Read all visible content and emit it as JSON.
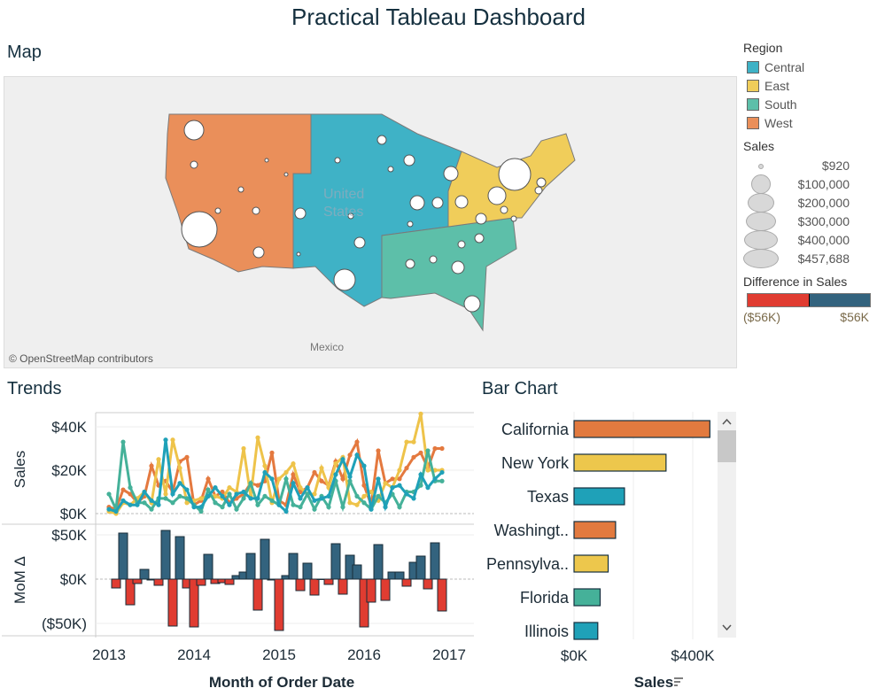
{
  "title": "Practical Tableau Dashboard",
  "map": {
    "title": "Map",
    "attribution": "© OpenStreetMap contributors",
    "labels": [
      "United",
      "States",
      "Mexico"
    ]
  },
  "legend": {
    "region_title": "Region",
    "regions": [
      {
        "label": "Central",
        "color": "#3fb2c6"
      },
      {
        "label": "East",
        "color": "#f0cd5a"
      },
      {
        "label": "South",
        "color": "#5dbfa9"
      },
      {
        "label": "West",
        "color": "#ea8f5a"
      }
    ],
    "sales_title": "Sales",
    "sales_sizes": [
      "$920",
      "$100,000",
      "$200,000",
      "$300,000",
      "$400,000",
      "$457,688"
    ],
    "diff_title": "Difference in Sales",
    "diff_min": "($56K)",
    "diff_max": "$56K",
    "diff_colors": {
      "negative": "#e03c31",
      "positive": "#33637e"
    }
  },
  "trends": {
    "title": "Trends"
  },
  "bar": {
    "title": "Bar Chart"
  },
  "chart_data": [
    {
      "type": "line",
      "ylabel": "Sales",
      "xlabel": "Month of Order Date",
      "x_ticks": [
        "2013",
        "2014",
        "2015",
        "2016",
        "2017"
      ],
      "y_ticks": [
        "$0K",
        "$20K",
        "$40K"
      ],
      "ylim": [
        0,
        46000
      ],
      "x_start": "2013-01",
      "grid": true,
      "series": [
        {
          "region": "West",
          "color": "#e4793f",
          "values": [
            3,
            2,
            11,
            9,
            5,
            8,
            22,
            13,
            15,
            10,
            24,
            26,
            4,
            6,
            16,
            8,
            10,
            5,
            7,
            9,
            14,
            13,
            15,
            28,
            6,
            4,
            18,
            10,
            12,
            19,
            15,
            13,
            24,
            16,
            27,
            33,
            13,
            4,
            29,
            14,
            16,
            16,
            21,
            26,
            28,
            21,
            30,
            30
          ]
        },
        {
          "region": "East",
          "color": "#eec34a",
          "values": [
            1,
            0,
            5,
            4,
            7,
            10,
            5,
            25,
            9,
            34,
            21,
            5,
            6,
            7,
            8,
            8,
            7,
            12,
            10,
            30,
            8,
            35,
            22,
            5,
            16,
            19,
            23,
            12,
            9,
            9,
            21,
            12,
            23,
            26,
            5,
            4,
            8,
            10,
            6,
            14,
            12,
            20,
            33,
            33,
            46,
            20,
            20,
            20
          ]
        },
        {
          "region": "South",
          "color": "#45b199",
          "values": [
            9,
            2,
            33,
            12,
            5,
            5,
            2,
            7,
            7,
            5,
            8,
            7,
            4,
            1,
            11,
            5,
            3,
            9,
            2,
            7,
            14,
            4,
            8,
            6,
            4,
            16,
            4,
            3,
            9,
            2,
            8,
            3,
            15,
            3,
            15,
            8,
            5,
            2,
            8,
            5,
            9,
            3,
            10,
            10,
            13,
            29,
            15,
            15
          ]
        },
        {
          "region": "Central",
          "color": "#1fa1b8",
          "values": [
            2,
            1,
            6,
            4,
            4,
            10,
            6,
            4,
            34,
            9,
            14,
            11,
            3,
            3,
            8,
            12,
            8,
            4,
            9,
            10,
            7,
            7,
            19,
            16,
            4,
            1,
            14,
            7,
            12,
            6,
            7,
            8,
            18,
            25,
            17,
            27,
            22,
            2,
            16,
            3,
            12,
            13,
            9,
            7,
            18,
            12,
            16,
            19
          ]
        }
      ]
    },
    {
      "type": "bar",
      "ylabel": "MoM Δ",
      "y_ticks": [
        "$50K",
        "$0K",
        "($50K)"
      ],
      "ylim": [
        -60000,
        56000
      ],
      "x_start": "2013-02",
      "values": [
        -10,
        52,
        -29,
        -5,
        11,
        -1,
        -7,
        55,
        -53,
        48,
        -10,
        -54,
        -7,
        28,
        -5,
        -4,
        -6,
        4,
        8,
        29,
        -35,
        45,
        -1,
        -58,
        4,
        29,
        -13,
        18,
        -18,
        0,
        -6,
        40,
        -17,
        27,
        16,
        -54,
        -26,
        39,
        -24,
        8,
        8,
        -8,
        19,
        26,
        -11,
        41,
        -36
      ]
    },
    {
      "type": "bar",
      "orientation": "horizontal",
      "xlabel": "Sales",
      "x_ticks": [
        "$0K",
        "$400K"
      ],
      "xlim": [
        0,
        470000
      ],
      "categories": [
        "California",
        "New York",
        "Texas",
        "Washingt..",
        "Pennsylva..",
        "Florida",
        "Illinois"
      ],
      "values": [
        457688,
        310000,
        170000,
        140000,
        115000,
        88000,
        80000
      ],
      "colors": [
        "#e27a3f",
        "#edc74c",
        "#1fa1b8",
        "#e27a3f",
        "#edc74c",
        "#45b199",
        "#1fa1b8"
      ]
    }
  ]
}
